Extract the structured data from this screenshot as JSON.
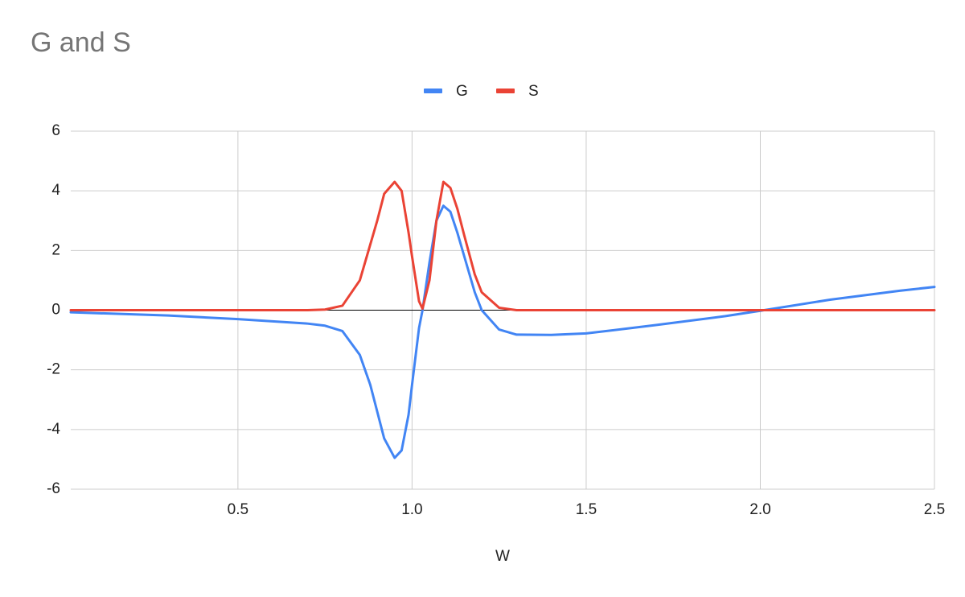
{
  "chart_data": {
    "type": "line",
    "title": "G and S",
    "x_label": "W",
    "x": [
      0.02,
      0.3,
      0.5,
      0.7,
      0.75,
      0.8,
      0.85,
      0.88,
      0.9,
      0.92,
      0.95,
      0.97,
      0.99,
      1.0,
      1.02,
      1.03,
      1.05,
      1.07,
      1.09,
      1.11,
      1.13,
      1.15,
      1.18,
      1.2,
      1.25,
      1.3,
      1.4,
      1.5,
      1.7,
      1.9,
      2.0,
      2.2,
      2.4,
      2.5
    ],
    "series": [
      {
        "name": "G",
        "color": "#4285f4",
        "values": [
          -0.07,
          -0.18,
          -0.3,
          -0.45,
          -0.52,
          -0.7,
          -1.5,
          -2.5,
          -3.4,
          -4.3,
          -4.95,
          -4.7,
          -3.5,
          -2.5,
          -0.6,
          0,
          1.6,
          3.0,
          3.5,
          3.3,
          2.6,
          1.8,
          0.6,
          0,
          -0.65,
          -0.82,
          -0.83,
          -0.78,
          -0.5,
          -0.2,
          -0.02,
          0.35,
          0.65,
          0.78
        ]
      },
      {
        "name": "S",
        "color": "#ea4335",
        "values": [
          0,
          0,
          0,
          0,
          0.02,
          0.15,
          1.0,
          2.2,
          3.0,
          3.9,
          4.3,
          4.0,
          2.6,
          1.8,
          0.3,
          0.05,
          1.0,
          3.0,
          4.3,
          4.1,
          3.4,
          2.5,
          1.2,
          0.6,
          0.08,
          0,
          0,
          0,
          0,
          0,
          0,
          0,
          0,
          0
        ]
      }
    ],
    "xlim": [
      0.02,
      2.5
    ],
    "xticks": [
      0.5,
      {
        "value": 1,
        "label": "1.0"
      },
      1.5,
      {
        "value": 2,
        "label": "2.0"
      },
      2.5
    ],
    "ylim": [
      -6,
      6
    ],
    "yticks": [
      6,
      4,
      2,
      0,
      -2,
      -4,
      -6
    ],
    "grid": true,
    "legend": "top"
  }
}
